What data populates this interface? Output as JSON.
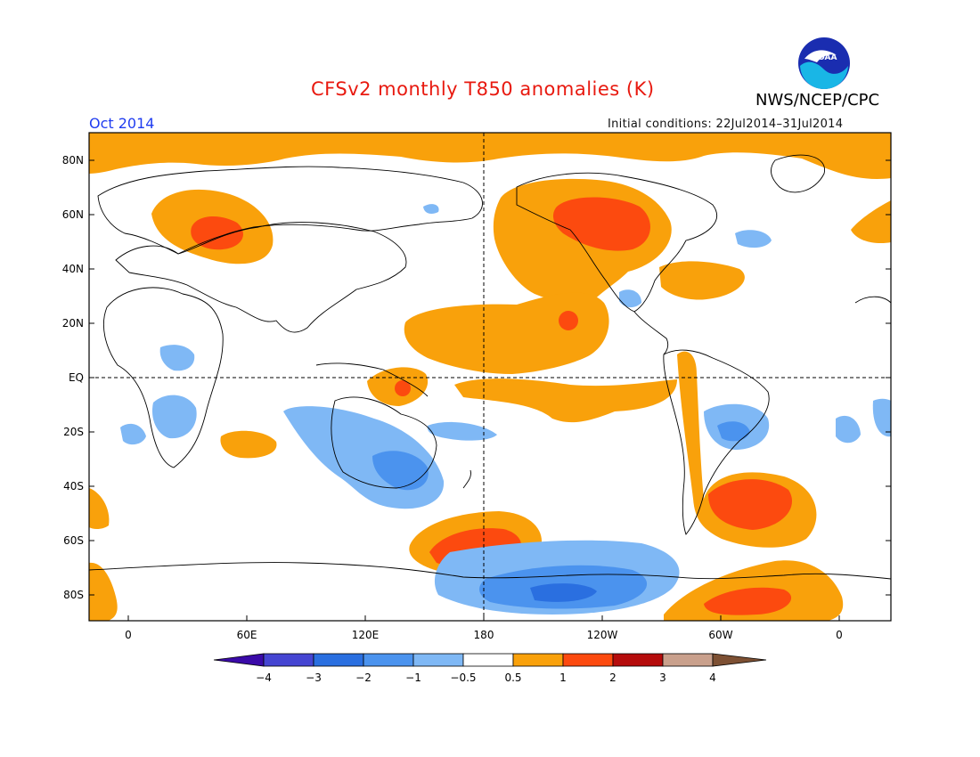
{
  "title": "CFSv2 monthly T850 anomalies (K)",
  "agency": "NWS/NCEP/CPC",
  "logo_text": "NOAA",
  "period": "Oct 2014",
  "initial_conditions": "Initial conditions: 22Jul2014–31Jul2014",
  "lat_labels": [
    "80N",
    "60N",
    "40N",
    "20N",
    "EQ",
    "20S",
    "40S",
    "60S",
    "80S"
  ],
  "lon_labels": [
    "0",
    "60E",
    "120E",
    "180",
    "120W",
    "60W",
    "0"
  ],
  "colorbar": {
    "labels": [
      "−4",
      "−3",
      "−2",
      "−1",
      "−0.5",
      "0.5",
      "1",
      "2",
      "3",
      "4"
    ],
    "colors": [
      "#3a0aa8",
      "#4545d2",
      "#2a6fe0",
      "#4b93ee",
      "#7fb8f5",
      "#ffffff",
      "#f9a10b",
      "#fc4a0f",
      "#b50c0c",
      "#c9a08c",
      "#7d5033"
    ]
  }
}
